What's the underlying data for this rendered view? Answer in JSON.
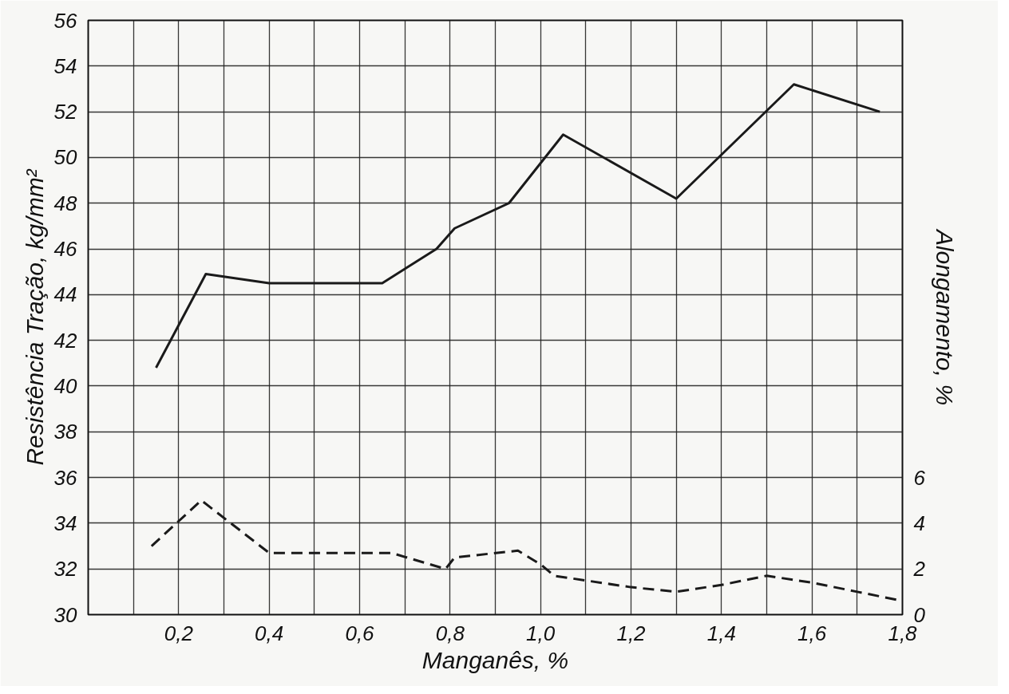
{
  "chart_data": {
    "type": "line",
    "xlabel": "Manganês, %",
    "ylabel": "Resistência Tração, kg/mm²",
    "y2label": "Alongamento, %",
    "xlim": [
      0,
      1.8
    ],
    "ylim": [
      30,
      56
    ],
    "y2lim": [
      0,
      26
    ],
    "xticks": [
      {
        "value": 0,
        "label": null
      },
      {
        "value": 0.1,
        "label": null
      },
      {
        "value": 0.2,
        "label": "0,2"
      },
      {
        "value": 0.3,
        "label": null
      },
      {
        "value": 0.4,
        "label": "0,4"
      },
      {
        "value": 0.5,
        "label": null
      },
      {
        "value": 0.6,
        "label": "0,6"
      },
      {
        "value": 0.7,
        "label": null
      },
      {
        "value": 0.8,
        "label": "0,8"
      },
      {
        "value": 0.9,
        "label": null
      },
      {
        "value": 1.0,
        "label": "1,0"
      },
      {
        "value": 1.1,
        "label": null
      },
      {
        "value": 1.2,
        "label": "1,2"
      },
      {
        "value": 1.3,
        "label": null
      },
      {
        "value": 1.4,
        "label": "1,4"
      },
      {
        "value": 1.5,
        "label": null
      },
      {
        "value": 1.6,
        "label": "1,6"
      },
      {
        "value": 1.7,
        "label": null
      },
      {
        "value": 1.8,
        "label": "1,8"
      }
    ],
    "yticks": [
      30,
      32,
      34,
      36,
      38,
      40,
      42,
      44,
      46,
      48,
      50,
      52,
      54,
      56
    ],
    "y2ticks": [
      0,
      2,
      4,
      6
    ],
    "grid": true,
    "series": [
      {
        "color": "#1a1a1a",
        "line_style": "solid",
        "x": [
          0.15,
          0.26,
          0.4,
          0.65,
          0.77,
          0.81,
          0.93,
          1.05,
          1.3,
          1.56,
          1.75
        ],
        "values": [
          40.8,
          44.9,
          44.5,
          44.5,
          46.0,
          46.9,
          48.0,
          51.0,
          48.2,
          53.2,
          52.0
        ]
      },
      {
        "color": "#1a1a1a",
        "line_style": "dashed",
        "axis": "y2",
        "x": [
          0.14,
          0.25,
          0.4,
          0.67,
          0.79,
          0.81,
          0.95,
          1.0,
          1.03,
          1.2,
          1.3,
          1.4,
          1.5,
          1.6,
          1.7,
          1.8
        ],
        "values": [
          3.0,
          5.0,
          2.7,
          2.7,
          2.0,
          2.5,
          2.8,
          2.2,
          1.7,
          1.2,
          1.0,
          1.3,
          1.7,
          1.4,
          1.0,
          0.6
        ]
      }
    ]
  }
}
